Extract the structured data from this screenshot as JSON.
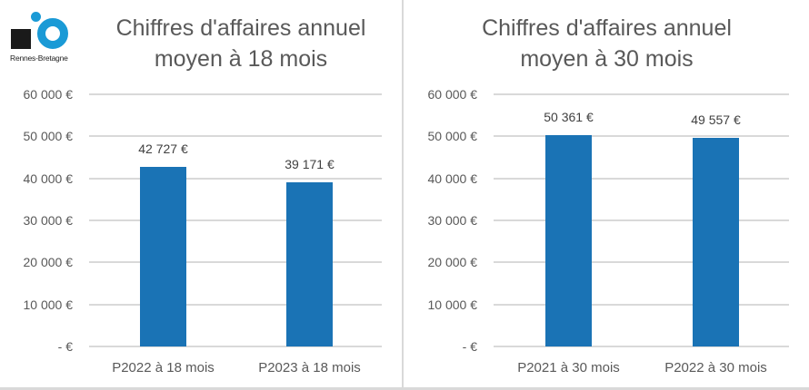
{
  "logo": {
    "text": "Rennes-Bretagne"
  },
  "chart_data": [
    {
      "type": "bar",
      "title": "Chiffres d'affaires annuel moyen à 18 mois",
      "title_lines": [
        "Chiffres d'affaires annuel",
        "moyen à 18 mois"
      ],
      "categories": [
        "P2022 à 18 mois",
        "P2023 à 18 mois"
      ],
      "values": [
        42727,
        39171
      ],
      "value_labels": [
        "42 727 €",
        "39 171 €"
      ],
      "yticks": [
        "60 000 €",
        "50 000 €",
        "40 000 €",
        "30 000 €",
        "20 000 €",
        "10 000 €",
        "-  €"
      ],
      "ylim": [
        0,
        60000
      ],
      "xlabel": "",
      "ylabel": "",
      "grid": true,
      "color": "#1a73b5"
    },
    {
      "type": "bar",
      "title": "Chiffres d'affaires annuel moyen à 30 mois",
      "title_lines": [
        "Chiffres d'affaires annuel",
        "moyen à 30 mois"
      ],
      "categories": [
        "P2021 à 30 mois",
        "P2022 à 30 mois"
      ],
      "values": [
        50361,
        49557
      ],
      "value_labels": [
        "50 361 €",
        "49 557 €"
      ],
      "yticks": [
        "60 000 €",
        "50 000 €",
        "40 000 €",
        "30 000 €",
        "20 000 €",
        "10 000 €",
        "-  €"
      ],
      "ylim": [
        0,
        60000
      ],
      "xlabel": "",
      "ylabel": "",
      "grid": true,
      "color": "#1a73b5"
    }
  ]
}
